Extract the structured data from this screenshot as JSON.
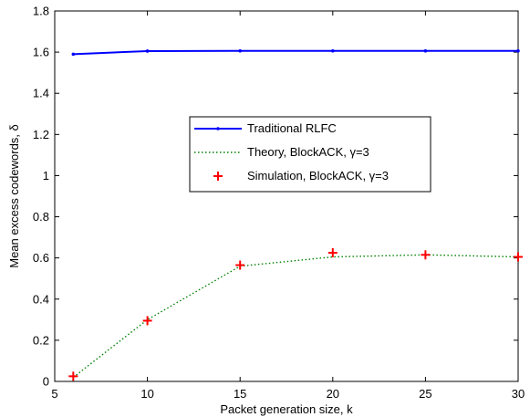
{
  "chart_data": {
    "type": "line",
    "xlabel": "Packet generation size, k",
    "ylabel": "Mean excess codewords, δ",
    "xlim": [
      5,
      30
    ],
    "ylim": [
      0,
      1.8
    ],
    "x_ticks": [
      5,
      10,
      15,
      20,
      25,
      30
    ],
    "y_ticks": [
      0,
      0.2,
      0.4,
      0.6,
      0.8,
      1,
      1.2,
      1.4,
      1.6,
      1.8
    ],
    "x_tick_labels": [
      "5",
      "10",
      "15",
      "20",
      "25",
      "30"
    ],
    "y_tick_labels": [
      "0",
      "0.2",
      "0.4",
      "0.6",
      "0.8",
      "1",
      "1.2",
      "1.4",
      "1.6",
      "1.8"
    ],
    "grid": false,
    "legend_placement": "center",
    "series": [
      {
        "name": "Traditional RLFC",
        "style": "solid-line-dot",
        "color": "#0000ff",
        "x": [
          6,
          10,
          15,
          20,
          25,
          30
        ],
        "y": [
          1.59,
          1.605,
          1.606,
          1.606,
          1.606,
          1.606
        ]
      },
      {
        "name": "Theory, BlockACK, γ=3",
        "style": "dotted-line",
        "color": "#008000",
        "x": [
          6,
          10,
          15,
          20,
          25,
          30
        ],
        "y": [
          0.02,
          0.3,
          0.56,
          0.605,
          0.615,
          0.605
        ]
      },
      {
        "name": "Simulation, BlockACK, γ=3",
        "style": "plus-marker",
        "color": "#ff0000",
        "x": [
          6,
          10,
          15,
          20,
          25,
          30
        ],
        "y": [
          0.025,
          0.295,
          0.565,
          0.625,
          0.615,
          0.605
        ]
      }
    ]
  }
}
